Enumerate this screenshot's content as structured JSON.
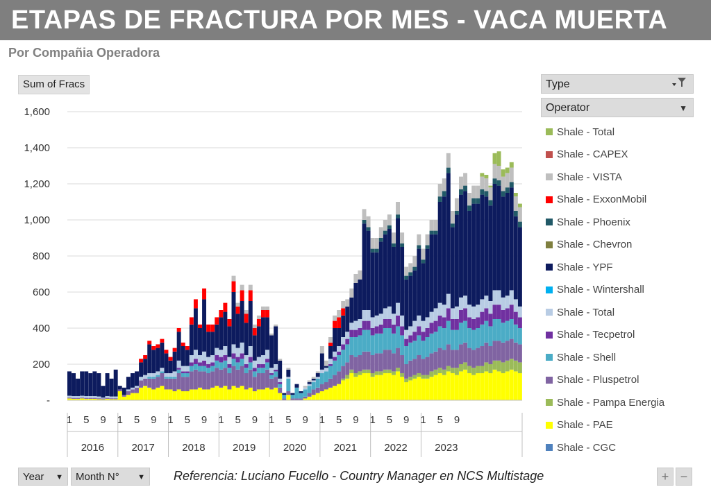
{
  "header": {
    "title": "ETAPAS DE FRACTURA POR MES -  VACA MUERTA",
    "subtitle": "Por Compañia Operadora"
  },
  "pivot": {
    "value_field": "Sum of Fracs",
    "type_filter": "Type",
    "operator_filter": "Operator",
    "row_fields": [
      "Year",
      "Month N°"
    ]
  },
  "footer": {
    "reference": "Referencia:  Luciano Fucello - Country Manager en NCS Multistage",
    "zoom_in": "+",
    "zoom_out": "−"
  },
  "icons": {
    "type_filter": "filter-funnel-icon",
    "dropdown": "dropdown-arrow-icon"
  },
  "chart_data": {
    "type": "bar",
    "stacked": true,
    "ylim": [
      0,
      1600
    ],
    "yticks": [
      "-",
      "200",
      "400",
      "600",
      "800",
      "1,000",
      "1,200",
      "1,400",
      "1,600"
    ],
    "xlabel_months": [
      "1",
      "5",
      "9"
    ],
    "years": [
      "2016",
      "2017",
      "2018",
      "2019",
      "2020",
      "2021",
      "2022",
      "2023"
    ],
    "grid": true,
    "legend_position": "right",
    "legend": [
      {
        "name": "Shale - Total",
        "color": "#9bbb59"
      },
      {
        "name": "Shale - CAPEX",
        "color": "#c0504d"
      },
      {
        "name": "Shale - VISTA",
        "color": "#bfbfbf"
      },
      {
        "name": "Shale - ExxonMobil",
        "color": "#ff0000"
      },
      {
        "name": "Shale - Phoenix",
        "color": "#215967"
      },
      {
        "name": "Shale - Chevron",
        "color": "#7f7f3f"
      },
      {
        "name": "Shale - YPF",
        "color": "#0d1b5e"
      },
      {
        "name": "Shale - Wintershall",
        "color": "#00b0f0"
      },
      {
        "name": "Shale - Total",
        "color": "#b8cce4"
      },
      {
        "name": "Shale - Tecpetrol",
        "color": "#7030a0"
      },
      {
        "name": "Shale - Shell",
        "color": "#4bacc6"
      },
      {
        "name": "Shale - Pluspetrol",
        "color": "#8064a2"
      },
      {
        "name": "Shale - Pampa Energia",
        "color": "#9bbb59"
      },
      {
        "name": "Shale - PAE",
        "color": "#ffff00"
      },
      {
        "name": "Shale - CGC",
        "color": "#4f81bd"
      }
    ],
    "stack_order": [
      "PAE",
      "Pampa Energia",
      "Pluspetrol",
      "Shell",
      "Tecpetrol",
      "Total (2)",
      "YPF",
      "Phoenix",
      "ExxonMobil",
      "VISTA",
      "Total (1)"
    ],
    "stack_colors": [
      "#ffff00",
      "#9bbb59",
      "#8064a2",
      "#4bacc6",
      "#7030a0",
      "#b8cce4",
      "#0d1b5e",
      "#215967",
      "#ff0000",
      "#bfbfbf",
      "#9bbb59"
    ],
    "totals": [
      160,
      150,
      120,
      160,
      160,
      150,
      160,
      150,
      80,
      150,
      120,
      170,
      80,
      70,
      130,
      150,
      160,
      230,
      250,
      330,
      300,
      310,
      340,
      280,
      240,
      290,
      400,
      320,
      300,
      460,
      560,
      420,
      620,
      420,
      420,
      460,
      500,
      540,
      450,
      690,
      540,
      640,
      500,
      640,
      420,
      470,
      520,
      520,
      370,
      420,
      230,
      40,
      180,
      40,
      90,
      50,
      80,
      110,
      130,
      160,
      300,
      220,
      350,
      470,
      500,
      550,
      560,
      620,
      700,
      720,
      1060,
      1020,
      900,
      900,
      960,
      1000,
      1030,
      930,
      1100,
      930,
      740,
      760,
      800,
      920,
      840,
      920,
      1000,
      1000,
      1200,
      1230,
      1370,
      1050,
      1120,
      1240,
      1260,
      1150,
      1190,
      1190,
      1260,
      1250,
      1190,
      1370,
      1380,
      1280,
      1290,
      1320,
      1150,
      1090
    ],
    "pae": [
      10,
      8,
      8,
      10,
      8,
      8,
      8,
      6,
      5,
      8,
      6,
      6,
      50,
      20,
      30,
      40,
      40,
      70,
      80,
      70,
      60,
      70,
      80,
      60,
      60,
      50,
      60,
      50,
      50,
      60,
      60,
      70,
      60,
      60,
      70,
      80,
      70,
      80,
      60,
      80,
      70,
      80,
      60,
      70,
      50,
      60,
      60,
      70,
      60,
      70,
      40,
      0,
      30,
      0,
      0,
      0,
      10,
      20,
      30,
      40,
      50,
      60,
      70,
      80,
      90,
      110,
      120,
      150,
      130,
      140,
      150,
      150,
      130,
      140,
      140,
      150,
      150,
      140,
      160,
      130,
      100,
      110,
      120,
      130,
      120,
      120,
      130,
      140,
      150,
      140,
      160,
      150,
      140,
      160,
      170,
      150,
      140,
      150,
      150,
      160,
      150,
      170,
      160,
      150,
      160,
      170,
      160,
      150
    ],
    "pampa": [
      0,
      0,
      0,
      0,
      0,
      0,
      0,
      0,
      0,
      0,
      0,
      0,
      0,
      0,
      0,
      0,
      0,
      0,
      0,
      0,
      0,
      0,
      0,
      0,
      0,
      0,
      0,
      0,
      0,
      0,
      0,
      0,
      0,
      0,
      0,
      0,
      0,
      0,
      0,
      0,
      0,
      0,
      0,
      0,
      0,
      0,
      0,
      0,
      0,
      0,
      0,
      0,
      0,
      0,
      0,
      0,
      0,
      0,
      0,
      0,
      0,
      0,
      0,
      0,
      0,
      10,
      20,
      20,
      20,
      20,
      20,
      20,
      20,
      20,
      20,
      20,
      20,
      20,
      20,
      20,
      20,
      20,
      20,
      20,
      20,
      20,
      30,
      30,
      30,
      30,
      30,
      30,
      40,
      40,
      40,
      40,
      40,
      40,
      40,
      50,
      50,
      50,
      60,
      60,
      60,
      60,
      60,
      60
    ],
    "pluspetrol": [
      5,
      5,
      5,
      5,
      5,
      5,
      5,
      5,
      5,
      5,
      5,
      5,
      10,
      10,
      20,
      20,
      30,
      40,
      40,
      50,
      60,
      60,
      70,
      60,
      60,
      70,
      90,
      80,
      80,
      100,
      110,
      90,
      100,
      90,
      90,
      100,
      100,
      100,
      90,
      110,
      100,
      110,
      90,
      100,
      80,
      90,
      90,
      100,
      60,
      60,
      30,
      10,
      20,
      10,
      10,
      10,
      10,
      20,
      30,
      30,
      40,
      40,
      50,
      60,
      70,
      70,
      70,
      80,
      90,
      90,
      100,
      100,
      100,
      100,
      100,
      110,
      110,
      100,
      110,
      100,
      80,
      90,
      90,
      100,
      90,
      100,
      100,
      100,
      110,
      110,
      120,
      100,
      100,
      110,
      110,
      100,
      100,
      100,
      110,
      110,
      100,
      110,
      110,
      110,
      110,
      110,
      100,
      100
    ],
    "shell": [
      0,
      0,
      0,
      0,
      0,
      0,
      0,
      0,
      0,
      0,
      0,
      0,
      0,
      0,
      0,
      0,
      0,
      0,
      0,
      10,
      10,
      10,
      10,
      10,
      10,
      10,
      20,
      20,
      20,
      30,
      30,
      30,
      30,
      30,
      30,
      40,
      40,
      40,
      30,
      40,
      40,
      40,
      30,
      40,
      30,
      30,
      30,
      40,
      20,
      30,
      20,
      20,
      70,
      20,
      60,
      30,
      40,
      40,
      40,
      50,
      60,
      60,
      70,
      80,
      90,
      90,
      100,
      100,
      110,
      110,
      120,
      120,
      110,
      110,
      110,
      120,
      120,
      110,
      120,
      110,
      100,
      100,
      100,
      110,
      100,
      110,
      110,
      110,
      120,
      120,
      130,
      110,
      110,
      120,
      120,
      110,
      110,
      110,
      120,
      120,
      110,
      120,
      120,
      110,
      110,
      110,
      100,
      90
    ],
    "tecpetrol": [
      0,
      0,
      0,
      0,
      0,
      0,
      0,
      0,
      0,
      0,
      0,
      0,
      0,
      0,
      0,
      0,
      0,
      0,
      0,
      0,
      0,
      0,
      0,
      0,
      0,
      0,
      10,
      10,
      10,
      20,
      30,
      20,
      30,
      20,
      20,
      30,
      30,
      30,
      20,
      30,
      30,
      30,
      20,
      30,
      20,
      20,
      20,
      20,
      10,
      10,
      10,
      0,
      0,
      0,
      0,
      0,
      0,
      0,
      0,
      0,
      0,
      0,
      10,
      20,
      20,
      30,
      30,
      40,
      40,
      40,
      50,
      50,
      40,
      40,
      50,
      50,
      50,
      50,
      60,
      50,
      40,
      40,
      50,
      50,
      50,
      50,
      60,
      60,
      60,
      60,
      70,
      60,
      60,
      70,
      70,
      60,
      60,
      60,
      70,
      70,
      70,
      80,
      80,
      70,
      70,
      80,
      70,
      60
    ],
    "total2": [
      10,
      10,
      10,
      10,
      10,
      10,
      10,
      10,
      5,
      10,
      10,
      10,
      0,
      0,
      10,
      10,
      10,
      20,
      20,
      20,
      20,
      20,
      20,
      20,
      20,
      30,
      40,
      30,
      30,
      40,
      50,
      40,
      50,
      40,
      40,
      40,
      40,
      50,
      40,
      50,
      50,
      60,
      50,
      60,
      40,
      40,
      50,
      50,
      30,
      30,
      20,
      0,
      10,
      0,
      0,
      0,
      10,
      10,
      10,
      10,
      20,
      20,
      30,
      30,
      30,
      40,
      40,
      40,
      50,
      50,
      60,
      60,
      60,
      60,
      60,
      60,
      70,
      60,
      70,
      60,
      50,
      50,
      60,
      60,
      60,
      60,
      60,
      70,
      70,
      70,
      80,
      60,
      70,
      70,
      70,
      70,
      70,
      70,
      70,
      70,
      70,
      80,
      80,
      70,
      70,
      80,
      70,
      60
    ],
    "phoenix": [
      0,
      0,
      0,
      0,
      0,
      0,
      0,
      0,
      0,
      0,
      0,
      0,
      0,
      0,
      0,
      0,
      0,
      0,
      0,
      0,
      0,
      0,
      0,
      0,
      0,
      0,
      0,
      0,
      0,
      0,
      0,
      0,
      0,
      0,
      0,
      0,
      0,
      0,
      0,
      0,
      0,
      0,
      0,
      0,
      0,
      0,
      0,
      0,
      0,
      0,
      0,
      0,
      0,
      0,
      0,
      0,
      0,
      0,
      0,
      0,
      0,
      0,
      0,
      0,
      0,
      0,
      0,
      0,
      0,
      0,
      20,
      20,
      20,
      20,
      20,
      20,
      20,
      20,
      20,
      20,
      20,
      20,
      20,
      20,
      20,
      20,
      20,
      20,
      30,
      30,
      30,
      20,
      20,
      30,
      30,
      30,
      30,
      30,
      30,
      30,
      30,
      30,
      30,
      30,
      30,
      30,
      30,
      30
    ],
    "exxon": [
      0,
      0,
      0,
      0,
      0,
      0,
      0,
      0,
      0,
      0,
      0,
      0,
      0,
      0,
      0,
      0,
      0,
      20,
      20,
      20,
      20,
      20,
      20,
      20,
      20,
      20,
      20,
      20,
      20,
      40,
      50,
      20,
      60,
      40,
      40,
      40,
      40,
      50,
      40,
      60,
      40,
      60,
      50,
      60,
      40,
      40,
      40,
      40,
      0,
      0,
      0,
      0,
      0,
      0,
      0,
      0,
      0,
      0,
      0,
      0,
      0,
      0,
      20,
      40,
      60,
      40,
      0,
      0,
      0,
      0,
      0,
      0,
      0,
      0,
      0,
      0,
      0,
      0,
      0,
      0,
      0,
      0,
      0,
      0,
      0,
      0,
      0,
      0,
      0,
      0,
      0,
      0,
      0,
      0,
      0,
      0,
      0,
      0,
      0,
      0,
      0,
      0,
      0,
      0,
      0,
      0,
      0,
      0
    ],
    "vista": [
      0,
      0,
      0,
      0,
      0,
      0,
      0,
      0,
      0,
      0,
      0,
      0,
      0,
      0,
      0,
      0,
      0,
      0,
      0,
      0,
      0,
      0,
      0,
      0,
      0,
      0,
      0,
      0,
      0,
      0,
      0,
      0,
      0,
      0,
      0,
      0,
      0,
      0,
      0,
      30,
      20,
      30,
      20,
      30,
      20,
      20,
      20,
      20,
      10,
      10,
      10,
      0,
      10,
      0,
      0,
      0,
      10,
      10,
      10,
      10,
      40,
      30,
      30,
      30,
      40,
      40,
      40,
      50,
      50,
      50,
      60,
      60,
      60,
      60,
      60,
      60,
      60,
      60,
      70,
      60,
      50,
      50,
      60,
      60,
      60,
      60,
      60,
      60,
      70,
      70,
      80,
      70,
      70,
      70,
      70,
      70,
      70,
      70,
      70,
      70,
      70,
      80,
      80,
      80,
      80,
      80,
      80,
      80
    ],
    "total1": [
      0,
      0,
      0,
      0,
      0,
      0,
      0,
      0,
      0,
      0,
      0,
      0,
      0,
      0,
      0,
      0,
      0,
      0,
      0,
      0,
      0,
      0,
      0,
      0,
      0,
      0,
      0,
      0,
      0,
      0,
      0,
      0,
      0,
      0,
      0,
      0,
      0,
      0,
      0,
      0,
      0,
      0,
      0,
      0,
      0,
      0,
      0,
      0,
      0,
      0,
      0,
      0,
      0,
      0,
      0,
      0,
      0,
      0,
      0,
      0,
      0,
      0,
      0,
      0,
      0,
      0,
      0,
      0,
      0,
      0,
      0,
      0,
      0,
      0,
      0,
      0,
      0,
      0,
      0,
      0,
      0,
      0,
      0,
      0,
      0,
      0,
      0,
      0,
      0,
      0,
      0,
      0,
      0,
      0,
      0,
      0,
      0,
      0,
      20,
      20,
      10,
      60,
      80,
      40,
      30,
      30,
      20,
      20
    ]
  }
}
